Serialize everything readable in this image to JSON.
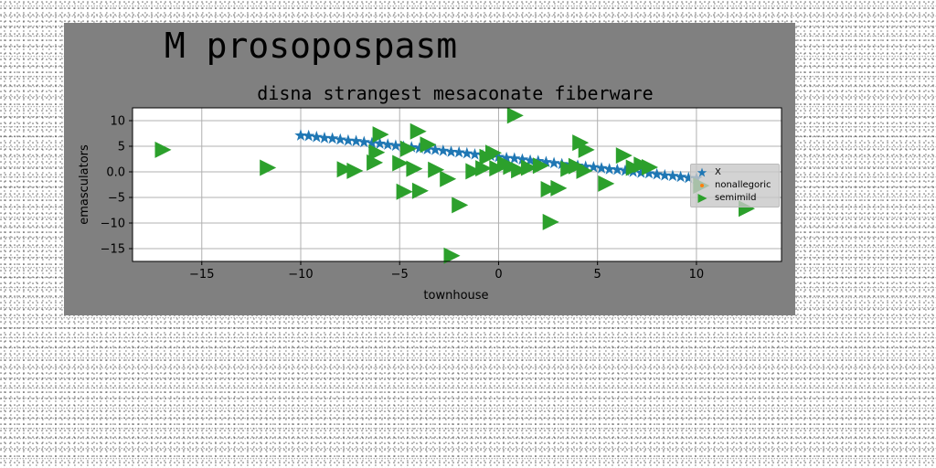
{
  "figure": {
    "background": "#808080"
  },
  "chart_data": {
    "type": "scatter",
    "suptitle": "M prosopospasm",
    "title": "disna strangest mesaconate fiberware",
    "xlabel": "townhouse",
    "ylabel": "emasculators",
    "xlim": [
      -18.5,
      14.3
    ],
    "ylim": [
      -17.5,
      12.5
    ],
    "xticks": [
      -15,
      -10,
      -5,
      0,
      5,
      10
    ],
    "xtick_labels": [
      "−15",
      "−10",
      "−5",
      "0",
      "5",
      "10"
    ],
    "yticks": [
      10,
      5,
      0,
      -5,
      -10,
      -15
    ],
    "ytick_labels": [
      "10",
      "5",
      "0.0",
      "−5",
      "−10",
      "−15"
    ],
    "grid": true,
    "legend_position": "center-right",
    "series": [
      {
        "name": "X",
        "marker": "star",
        "color": "#1f77b4",
        "points": [
          [
            -10,
            7.1
          ],
          [
            -9.6,
            7.0
          ],
          [
            -9.2,
            6.8
          ],
          [
            -8.8,
            6.6
          ],
          [
            -8.4,
            6.5
          ],
          [
            -8,
            6.3
          ],
          [
            -7.6,
            6.1
          ],
          [
            -7.2,
            6.0
          ],
          [
            -6.8,
            5.8
          ],
          [
            -6.4,
            5.6
          ],
          [
            -6,
            5.5
          ],
          [
            -5.6,
            5.3
          ],
          [
            -5.2,
            5.1
          ],
          [
            -4.8,
            4.9
          ],
          [
            -4.4,
            4.8
          ],
          [
            -4,
            4.6
          ],
          [
            -3.6,
            4.4
          ],
          [
            -3.2,
            4.3
          ],
          [
            -2.8,
            4.1
          ],
          [
            -2.4,
            3.9
          ],
          [
            -2,
            3.8
          ],
          [
            -1.6,
            3.6
          ],
          [
            -1.2,
            3.4
          ],
          [
            -0.8,
            3.2
          ],
          [
            -0.4,
            3.1
          ],
          [
            0,
            2.9
          ],
          [
            0.4,
            2.7
          ],
          [
            0.8,
            2.6
          ],
          [
            1.2,
            2.4
          ],
          [
            1.6,
            2.2
          ],
          [
            2,
            2.1
          ],
          [
            2.4,
            1.9
          ],
          [
            2.8,
            1.7
          ],
          [
            3.2,
            1.5
          ],
          [
            3.6,
            1.4
          ],
          [
            4,
            1.2
          ],
          [
            4.4,
            1.0
          ],
          [
            4.8,
            0.9
          ],
          [
            5.2,
            0.7
          ],
          [
            5.6,
            0.5
          ],
          [
            6,
            0.4
          ],
          [
            6.4,
            0.2
          ],
          [
            6.8,
            0.0
          ],
          [
            7.2,
            -0.2
          ],
          [
            7.6,
            -0.3
          ],
          [
            8,
            -0.5
          ],
          [
            8.4,
            -0.7
          ],
          [
            8.8,
            -0.8
          ],
          [
            9.2,
            -1.0
          ],
          [
            9.6,
            -1.2
          ],
          [
            10,
            -1.3
          ]
        ]
      },
      {
        "name": "nonallegoric",
        "marker": "circle",
        "color": "#ff7f0e",
        "points": [
          [
            0.9,
            -0.3
          ],
          [
            1.0,
            0.2
          ],
          [
            0.8,
            0.6
          ],
          [
            1.05,
            -0.1
          ]
        ]
      },
      {
        "name": "semimild",
        "marker": "triangle-right",
        "color": "#2ca02c",
        "points": [
          [
            -17,
            4.3
          ],
          [
            -11.7,
            0.8
          ],
          [
            -7.8,
            0.5
          ],
          [
            -7.3,
            0.2
          ],
          [
            -6.2,
            3.8
          ],
          [
            -6,
            7.3
          ],
          [
            -6.3,
            1.8
          ],
          [
            -5,
            1.7
          ],
          [
            -4.8,
            -3.9
          ],
          [
            -4.6,
            4.5
          ],
          [
            -4.3,
            0.6
          ],
          [
            -4.1,
            7.9
          ],
          [
            -4,
            -3.7
          ],
          [
            -3.6,
            5.3
          ],
          [
            -3.2,
            0.4
          ],
          [
            -2.6,
            -1.4
          ],
          [
            -2.4,
            -16.4
          ],
          [
            -2,
            -6.5
          ],
          [
            -1.3,
            0.1
          ],
          [
            -0.8,
            0.7
          ],
          [
            -0.6,
            2.9
          ],
          [
            -0.3,
            3.7
          ],
          [
            -0.1,
            0.7
          ],
          [
            0.3,
            1.6
          ],
          [
            0.6,
            1.0
          ],
          [
            0.8,
            11
          ],
          [
            1,
            0.3
          ],
          [
            1.5,
            0.8
          ],
          [
            2.1,
            1.2
          ],
          [
            2.5,
            -3.4
          ],
          [
            2.6,
            -9.8
          ],
          [
            3,
            -3.2
          ],
          [
            3.5,
            0.6
          ],
          [
            3.9,
            1.1
          ],
          [
            4.1,
            5.7
          ],
          [
            4.3,
            0.2
          ],
          [
            4.4,
            4.3
          ],
          [
            5.4,
            -2.3
          ],
          [
            6.3,
            3.2
          ],
          [
            6.8,
            0.8
          ],
          [
            7.2,
            1.4
          ],
          [
            7.6,
            0.9
          ],
          [
            10.2,
            -2.7
          ],
          [
            12.5,
            -7.2
          ]
        ]
      }
    ]
  }
}
